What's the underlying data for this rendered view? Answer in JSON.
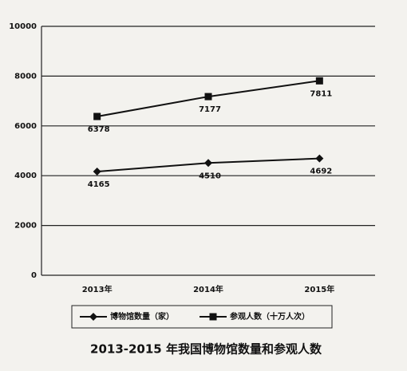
{
  "chart_data": {
    "type": "line",
    "title": "2013-2015 年我国博物馆数量和参观人数",
    "categories": [
      "2013年",
      "2014年",
      "2015年"
    ],
    "series": [
      {
        "name": "博物馆数量（家）",
        "color": "#111111",
        "marker": "diamond",
        "values": [
          4165,
          4510,
          4692
        ]
      },
      {
        "name": "参观人数（十万人次）",
        "color": "#111111",
        "marker": "square",
        "values": [
          6378,
          7177,
          7811
        ]
      }
    ],
    "ylim": [
      0,
      10000
    ],
    "yticks": [
      0,
      2000,
      4000,
      6000,
      8000,
      10000
    ],
    "grid": true
  }
}
